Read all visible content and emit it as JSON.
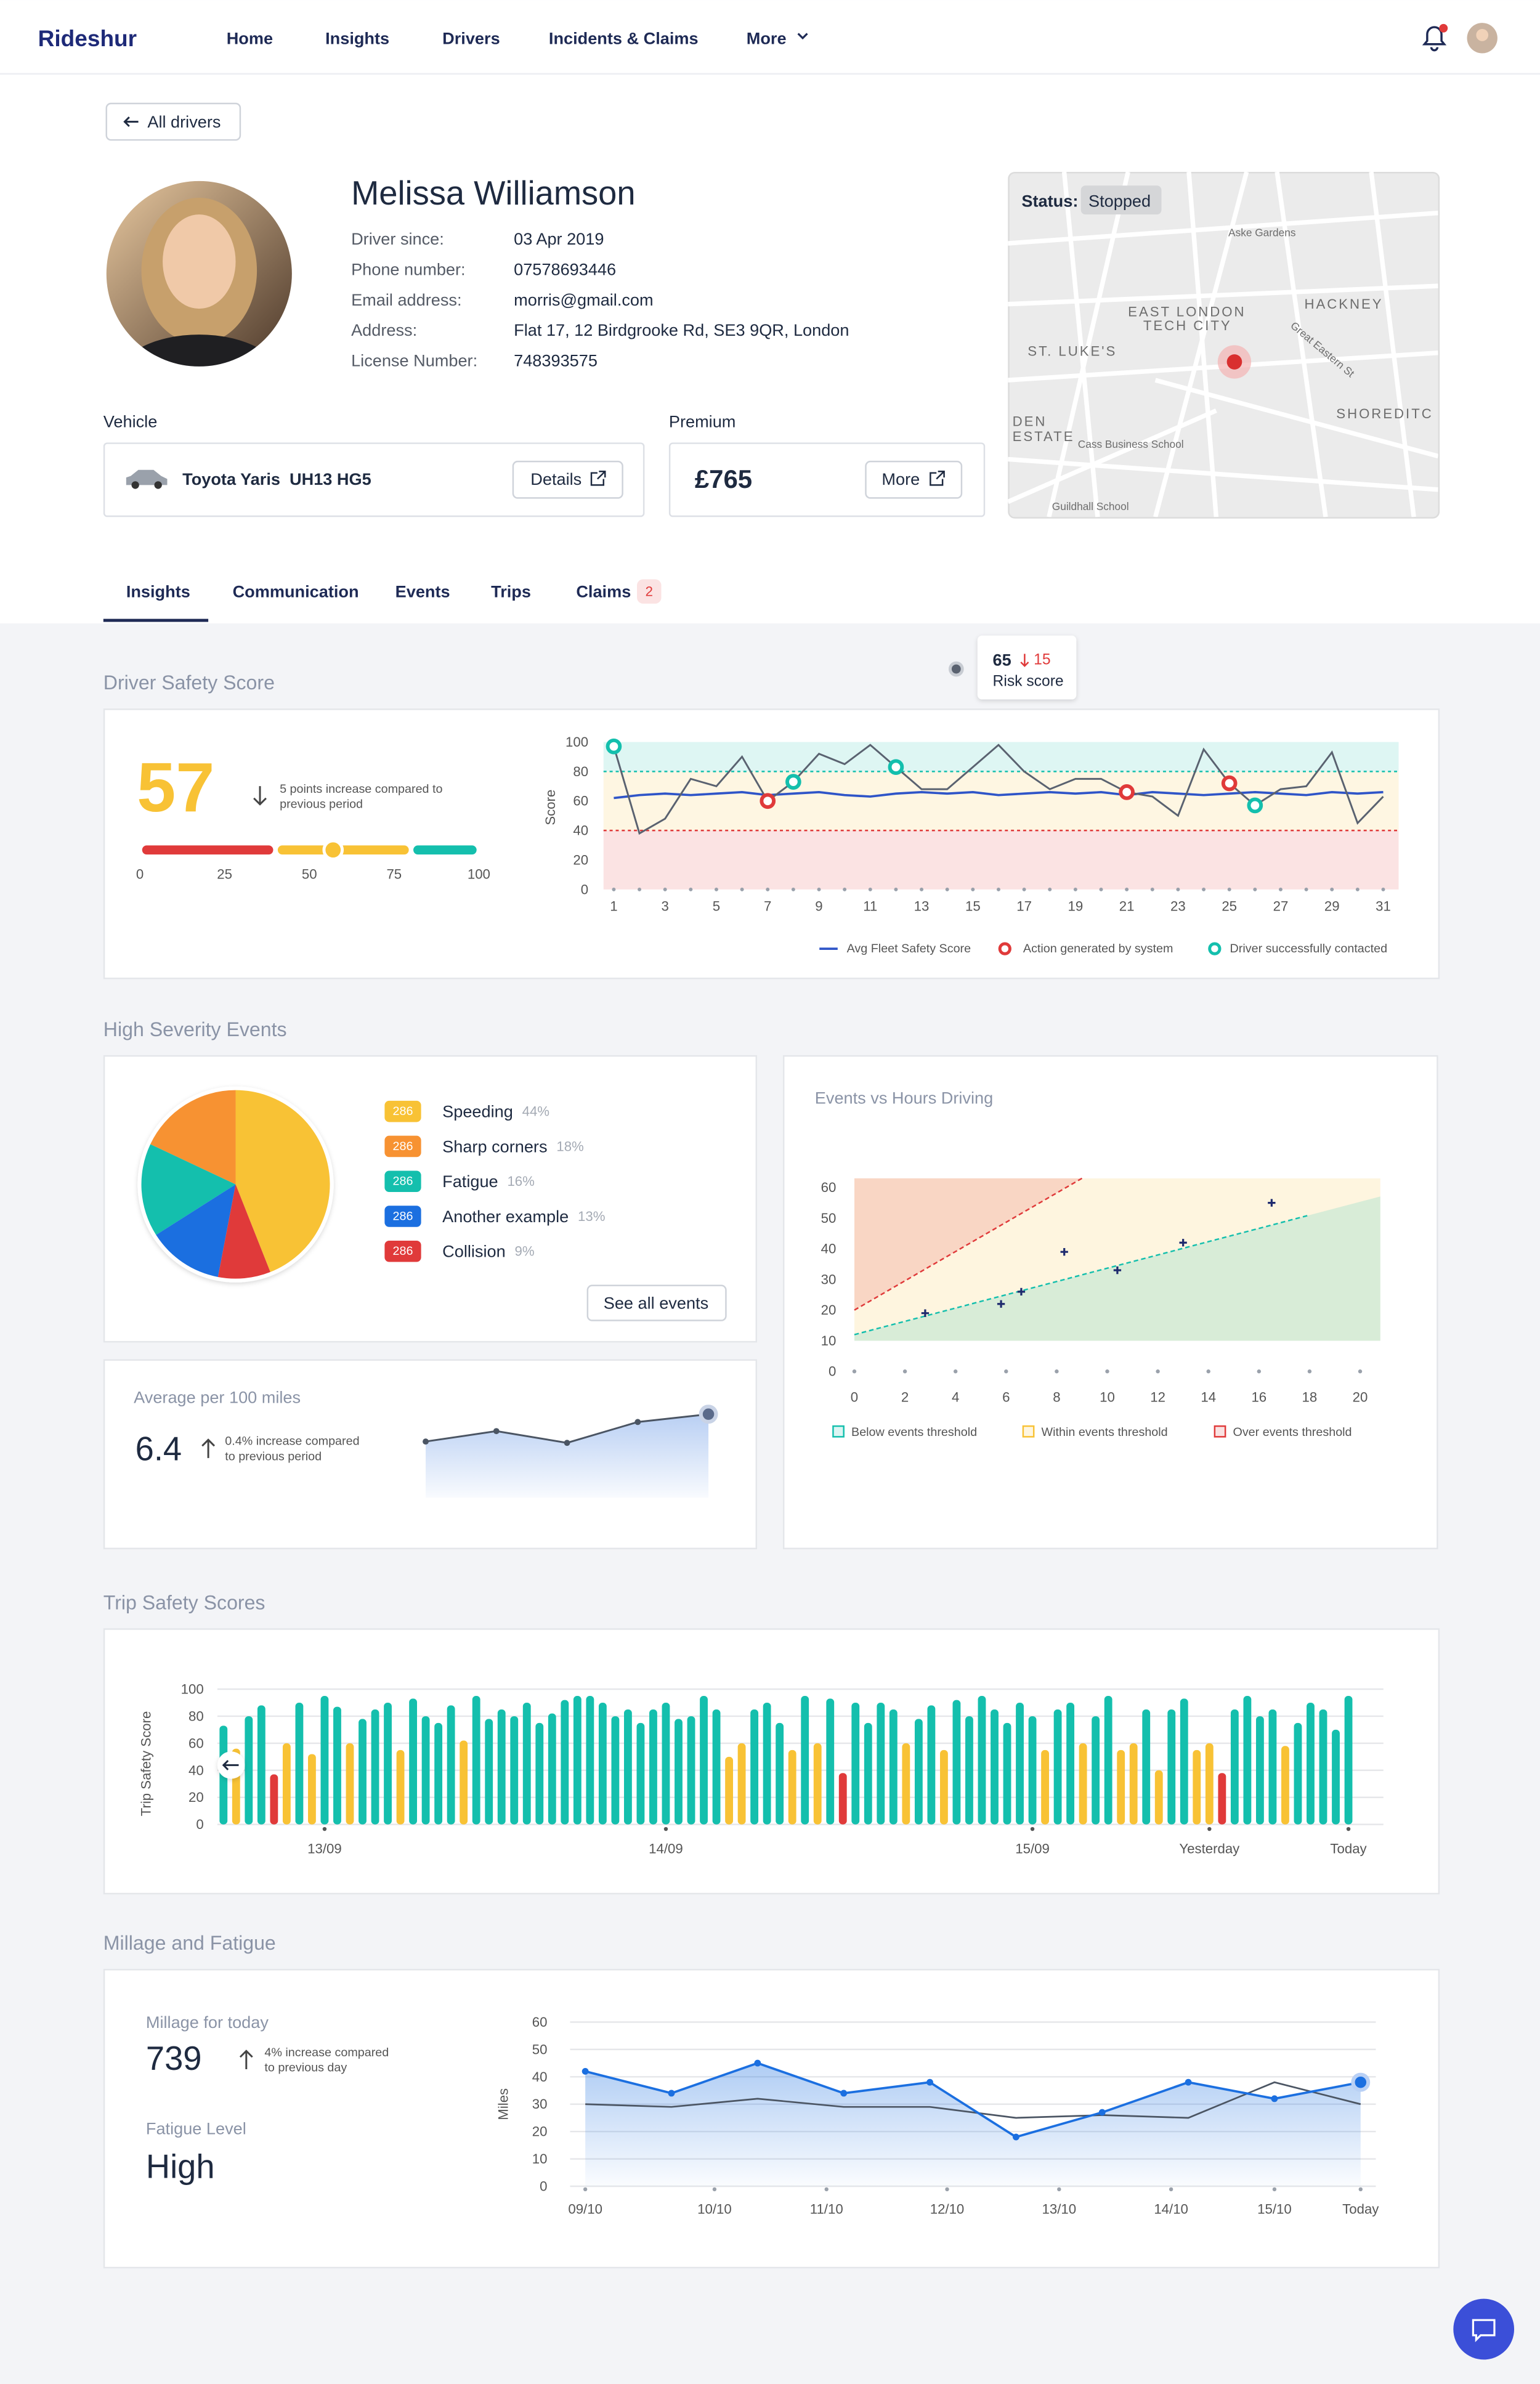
{
  "nav": {
    "brand": "Rideshur",
    "items": [
      "Home",
      "Insights",
      "Drivers",
      "Incidents & Claims",
      "More"
    ]
  },
  "back_button": "All drivers",
  "driver": {
    "name": "Melissa Williamson",
    "fields": [
      {
        "label": "Driver since:",
        "value": "03 Apr 2019"
      },
      {
        "label": "Phone number:",
        "value": "07578693446"
      },
      {
        "label": "Email address:",
        "value": "morris@gmail.com"
      },
      {
        "label": "Address:",
        "value": "Flat 17, 12 Birdgrooke Rd, SE3 9QR, London"
      },
      {
        "label": "License Number:",
        "value": "748393575"
      }
    ]
  },
  "vehicle": {
    "heading": "Vehicle",
    "name": "Toyota Yaris  UH13 HG5",
    "button": "Details"
  },
  "premium": {
    "heading": "Premium",
    "amount": "£765",
    "button": "More"
  },
  "map": {
    "status_label": "Status:",
    "status": "Stopped",
    "places": [
      "EAST LONDON",
      "TECH CITY",
      "HACKNEY",
      "ST. LUKE'S",
      "SHOREDITC",
      "DEN",
      "ESTATE",
      "Cass Business School",
      "Guildhall School",
      "Great Eastern St",
      "Aske Gardens"
    ]
  },
  "tabs": {
    "items": [
      "Insights",
      "Communication",
      "Events",
      "Trips",
      "Claims"
    ],
    "claims_badge": "2"
  },
  "risk_tooltip": {
    "score": "65",
    "change": "15",
    "label": "Risk score"
  },
  "safety_section": {
    "title": "Driver Safety Score",
    "note": [
      "5 points increase compared to",
      "previous period"
    ]
  },
  "events_section": {
    "title": "High Severity Events",
    "button": "See all events"
  },
  "average": {
    "label": "Average per 100 miles",
    "value": "6.4",
    "note": [
      "0.4% increase compared",
      "to previous period"
    ]
  },
  "trips_section": {
    "title": "Trip Safety Scores"
  },
  "millage_section": {
    "title": "Millage and Fatigue",
    "millage_label": "Millage for today",
    "millage_value": "739",
    "millage_note": [
      "4% increase compared",
      "to previous day"
    ],
    "fatigue_label": "Fatigue Level",
    "fatigue_value": "High"
  },
  "chart_data": [
    {
      "type": "gauge",
      "value": 57,
      "xlim": [
        0,
        100
      ],
      "xticks": [
        0,
        25,
        50,
        75,
        100
      ],
      "bands": [
        {
          "range": [
            0,
            40
          ],
          "color": "#e03a3a"
        },
        {
          "range": [
            40,
            80
          ],
          "color": "#f8c235"
        },
        {
          "range": [
            80,
            100
          ],
          "color": "#14bfad"
        }
      ],
      "color": "#f8c235"
    },
    {
      "type": "line",
      "ylabel": "Score",
      "x": [
        1,
        2,
        3,
        4,
        5,
        6,
        7,
        8,
        9,
        10,
        11,
        12,
        13,
        14,
        15,
        16,
        17,
        18,
        19,
        20,
        21,
        22,
        23,
        24,
        25,
        26,
        27,
        28,
        29,
        30,
        31
      ],
      "xlim": [
        0.6,
        31.6
      ],
      "xticks": [
        1,
        3,
        5,
        7,
        9,
        11,
        13,
        15,
        17,
        19,
        21,
        23,
        25,
        27,
        29,
        31
      ],
      "ylim": [
        0,
        100
      ],
      "yticks": [
        0,
        20,
        40,
        60,
        80,
        100
      ],
      "bands": [
        {
          "range": [
            80,
            100
          ],
          "color": "#14bfad"
        },
        {
          "range": [
            40,
            80
          ],
          "color": "#f8c235"
        },
        {
          "range": [
            0,
            40
          ],
          "color": "#e03a3a"
        }
      ],
      "thresholds": [
        {
          "value": 80,
          "color": "#14bfad"
        },
        {
          "value": 40,
          "color": "#e03a3a"
        }
      ],
      "series": [
        {
          "color": "#5a6270",
          "values": [
            97,
            38,
            48,
            75,
            70,
            90,
            60,
            73,
            92,
            85,
            98,
            83,
            68,
            68,
            83,
            98,
            80,
            68,
            75,
            75,
            66,
            63,
            50,
            95,
            72,
            57,
            68,
            70,
            93,
            45,
            63
          ]
        },
        {
          "name": "Avg Fleet Safety Score",
          "color": "#2f55c8",
          "values": [
            62,
            64,
            65,
            64,
            65,
            66,
            64,
            65,
            66,
            64,
            63,
            65,
            66,
            65,
            66,
            64,
            65,
            66,
            65,
            66,
            64,
            66,
            65,
            64,
            65,
            66,
            65,
            64,
            66,
            65,
            66
          ]
        }
      ],
      "markers": [
        {
          "name": "Action generated by system",
          "color": "#e03a3a",
          "x": [
            7,
            21,
            25
          ]
        },
        {
          "name": "Driver successfully contacted",
          "color": "#14bfad",
          "x": [
            1,
            8,
            12,
            26
          ]
        }
      ]
    },
    {
      "type": "pie",
      "categories": [
        "Speeding",
        "Sharp corners",
        "Fatigue",
        "Another example",
        "Collision"
      ],
      "values": [
        44,
        18,
        16,
        13,
        9
      ],
      "value_labels": [
        "44%",
        "18%",
        "16%",
        "13%",
        "9%"
      ],
      "counts": [
        286,
        286,
        286,
        286,
        286
      ],
      "colors": [
        "#f8c235",
        "#f79232",
        "#14bfad",
        "#1b6fe0",
        "#e03a3a"
      ]
    },
    {
      "type": "area",
      "values": [
        4.3,
        5.1,
        4.2,
        5.8,
        6.4
      ],
      "ylim": [
        0,
        7
      ],
      "color": "#4b5563"
    },
    {
      "type": "scatter",
      "title": "Events vs Hours Driving",
      "x": [
        2.8,
        5.8,
        6.6,
        8.3,
        10.4,
        13,
        16.5
      ],
      "values": [
        19,
        22,
        26,
        39,
        33,
        42,
        55
      ],
      "xlim": [
        0,
        20.8
      ],
      "xticks": [
        0,
        2,
        4,
        6,
        8,
        10,
        12,
        14,
        16,
        18,
        20
      ],
      "ylim": [
        0,
        63
      ],
      "yticks": [
        0,
        10,
        20,
        30,
        40,
        50,
        60
      ],
      "shade_ylim": [
        10,
        63
      ],
      "color": "#1e2a6e",
      "bands": [
        {
          "name": "Below events threshold",
          "color": "#14bfad"
        },
        {
          "name": "Within events threshold",
          "color": "#f8c235"
        },
        {
          "name": "Over events threshold",
          "color": "#e03a3a"
        }
      ],
      "lower_threshold": {
        "x": [
          0,
          18
        ],
        "y": [
          12,
          51
        ]
      },
      "upper_threshold": {
        "x": [
          0,
          9
        ],
        "y": [
          20,
          63
        ]
      }
    },
    {
      "type": "bar",
      "ylabel": "Trip Safety Score",
      "grid": true,
      "categories": [
        null,
        null,
        null,
        null,
        null,
        null,
        null,
        null,
        "13/09",
        null,
        null,
        null,
        null,
        null,
        null,
        null,
        null,
        null,
        null,
        null,
        null,
        null,
        null,
        null,
        null,
        null,
        null,
        null,
        null,
        null,
        null,
        null,
        null,
        null,
        null,
        "14/09",
        null,
        null,
        null,
        null,
        null,
        null,
        null,
        null,
        null,
        null,
        null,
        null,
        null,
        null,
        null,
        null,
        null,
        null,
        null,
        null,
        null,
        null,
        null,
        null,
        null,
        null,
        null,
        null,
        "15/09",
        null,
        null,
        null,
        null,
        null,
        null,
        null,
        null,
        null,
        null,
        null,
        null,
        null,
        "Yesterday",
        null,
        null,
        null,
        null,
        null,
        null,
        null,
        null,
        null,
        null,
        "Today"
      ],
      "values": [
        73,
        56,
        80,
        88,
        37,
        60,
        90,
        52,
        95,
        87,
        60,
        78,
        85,
        90,
        55,
        93,
        80,
        75,
        88,
        62,
        95,
        78,
        85,
        80,
        90,
        75,
        82,
        92,
        95,
        95,
        90,
        80,
        85,
        75,
        85,
        90,
        78,
        80,
        95,
        85,
        50,
        60,
        85,
        90,
        75,
        55,
        95,
        60,
        93,
        38,
        90,
        75,
        90,
        85,
        60,
        78,
        88,
        55,
        92,
        80,
        95,
        85,
        75,
        90,
        80,
        55,
        85,
        90,
        60,
        80,
        95,
        55,
        60,
        85,
        40,
        85,
        93,
        55,
        60,
        38,
        85,
        95,
        80,
        85,
        58,
        75,
        90,
        85,
        70,
        95
      ],
      "ylim": [
        0,
        100
      ],
      "yticks": [
        0,
        20,
        40,
        60,
        80,
        100
      ],
      "level_colors": [
        {
          "min": 0,
          "color": "#e03a3a"
        },
        {
          "min": 40,
          "color": "#f8c235"
        },
        {
          "min": 70,
          "color": "#14bfad"
        }
      ]
    },
    {
      "type": "line",
      "ylabel": "Miles",
      "x": [
        0,
        1,
        2,
        3,
        4,
        5,
        6,
        7,
        8,
        9
      ],
      "xlim": [
        0,
        9
      ],
      "xticks": [
        {
          "value": 0,
          "label": "09/10"
        },
        {
          "value": 1.5,
          "label": "10/10"
        },
        {
          "value": 2.8,
          "label": "11/10"
        },
        {
          "value": 4.2,
          "label": "12/10"
        },
        {
          "value": 5.5,
          "label": "13/10"
        },
        {
          "value": 6.8,
          "label": "14/10"
        },
        {
          "value": 8,
          "label": "15/10"
        },
        {
          "value": 9,
          "label": "Today"
        }
      ],
      "ylim": [
        0,
        60
      ],
      "yticks": [
        0,
        10,
        20,
        30,
        40,
        50,
        60
      ],
      "grid": true,
      "series": [
        {
          "color": "#1b6fe0",
          "values": [
            42,
            34,
            45,
            34,
            38,
            18,
            27,
            38,
            32,
            38
          ]
        },
        {
          "color": "#4b5563",
          "values": [
            30,
            29,
            32,
            29,
            29,
            25,
            26,
            25,
            38,
            30
          ]
        }
      ]
    }
  ]
}
